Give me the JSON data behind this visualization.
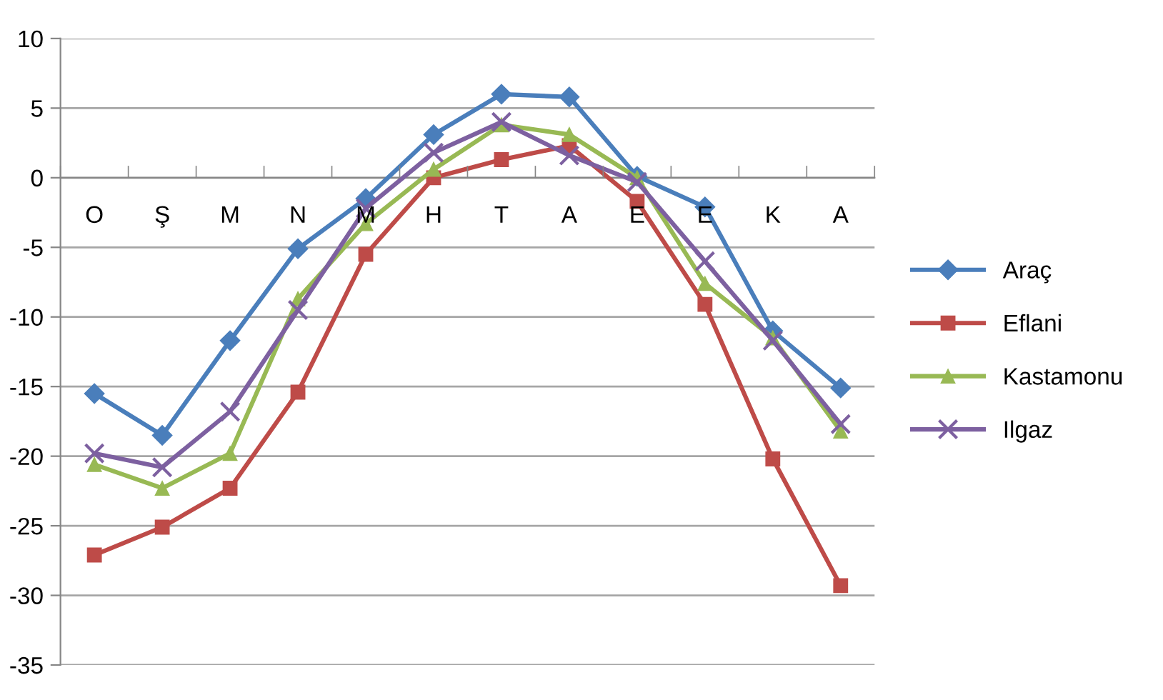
{
  "chart_data": {
    "type": "line",
    "categories": [
      "O",
      "Ş",
      "M",
      "N",
      "M",
      "H",
      "T",
      "A",
      "E",
      "E",
      "K",
      "A"
    ],
    "series": [
      {
        "name": "Araç",
        "color": "#4a7ebb",
        "marker": "diamond",
        "values": [
          -15.5,
          -18.5,
          -11.7,
          -5.1,
          -1.5,
          3.1,
          6.0,
          5.8,
          0.1,
          -2.1,
          -11.0,
          -15.1
        ]
      },
      {
        "name": "Eflani",
        "color": "#be4b48",
        "marker": "square",
        "values": [
          -27.1,
          -25.1,
          -22.3,
          -15.4,
          -5.5,
          0.0,
          1.3,
          2.3,
          -1.7,
          -9.1,
          -20.2,
          -29.3
        ]
      },
      {
        "name": "Kastamonu",
        "color": "#98b954",
        "marker": "triangle",
        "values": [
          -20.6,
          -22.3,
          -19.8,
          -8.7,
          -3.3,
          0.6,
          3.8,
          3.1,
          0.0,
          -7.6,
          -11.5,
          -18.2
        ]
      },
      {
        "name": "Ilgaz",
        "color": "#7d60a0",
        "marker": "cross",
        "values": [
          -19.8,
          -20.8,
          -16.8,
          -9.5,
          -2.2,
          1.8,
          4.0,
          1.6,
          -0.3,
          -6.0,
          -11.7,
          -17.7
        ]
      }
    ],
    "ylim": [
      -35,
      10
    ],
    "yticks": [
      -35,
      -30,
      -25,
      -20,
      -15,
      -10,
      -5,
      0,
      5,
      10
    ],
    "grid": "y",
    "legend": "right",
    "line_style": "solid"
  }
}
